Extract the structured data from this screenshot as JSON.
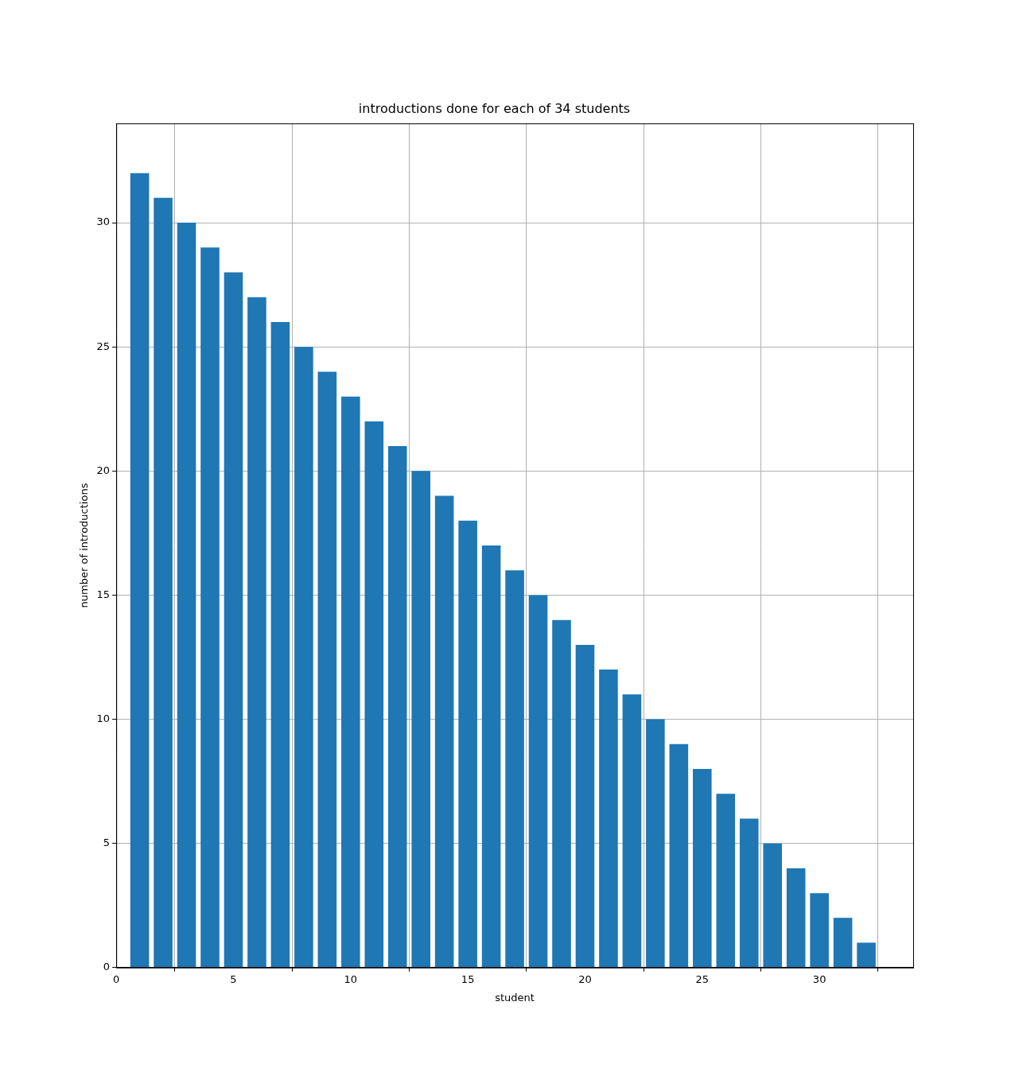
{
  "chart_data": {
    "type": "bar",
    "title": "introductions done for each of 34 students",
    "x_label": "student",
    "y_label": "number of introductions",
    "x": [
      1,
      2,
      3,
      4,
      5,
      6,
      7,
      8,
      9,
      10,
      11,
      12,
      13,
      14,
      15,
      16,
      17,
      18,
      19,
      20,
      21,
      22,
      23,
      24,
      25,
      26,
      27,
      28,
      29,
      30,
      31,
      32
    ],
    "values": [
      32,
      31,
      30,
      29,
      28,
      27,
      26,
      25,
      24,
      23,
      22,
      21,
      20,
      19,
      18,
      17,
      16,
      15,
      14,
      13,
      12,
      11,
      10,
      9,
      8,
      7,
      6,
      5,
      4,
      3,
      2,
      1
    ],
    "color": "#1f77b4",
    "xlim": [
      0,
      34
    ],
    "xticks": [
      0,
      5,
      10,
      15,
      20,
      25,
      30
    ],
    "ylim": [
      0,
      34
    ],
    "yticks": [
      0,
      5,
      10,
      15,
      20,
      25,
      30
    ],
    "grid": true
  }
}
